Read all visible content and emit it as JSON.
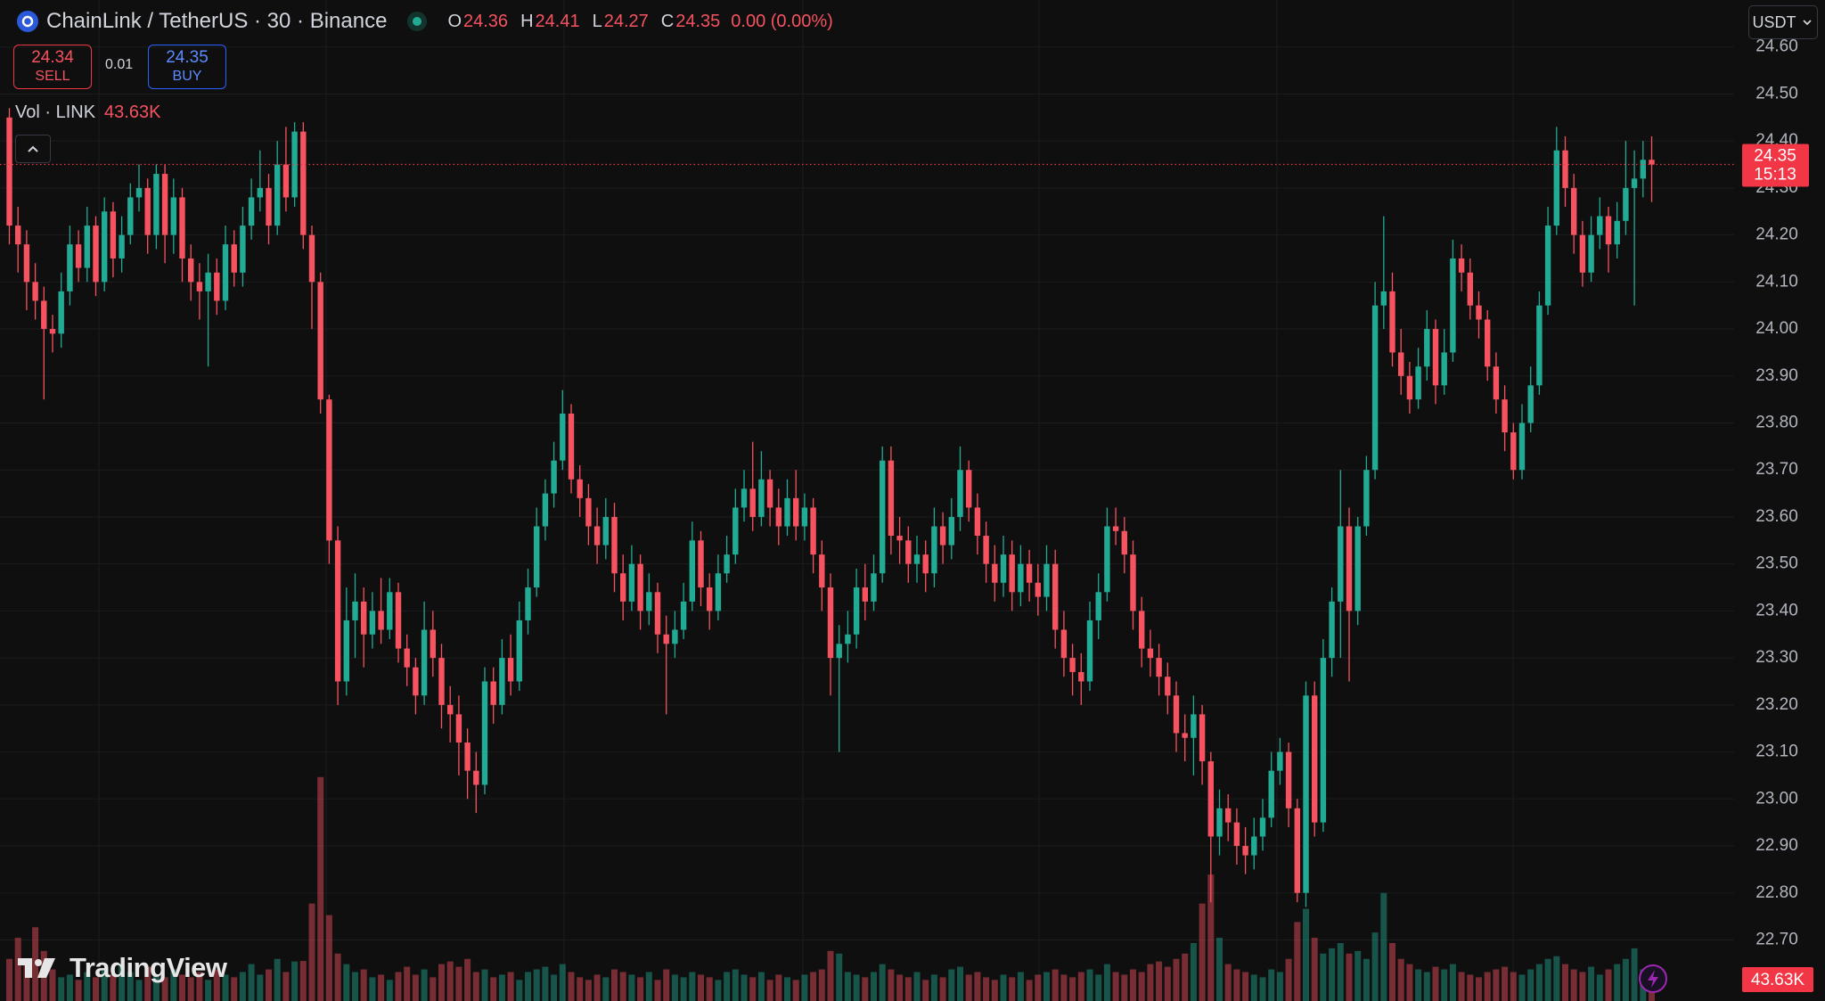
{
  "header": {
    "title": "ChainLink / TetherUS · 30 · Binance",
    "ohlc_labels": [
      "O",
      "H",
      "L",
      "C"
    ],
    "change": "0.00 (0.00%)",
    "currency": "USDT",
    "logo_text": "TradingView"
  },
  "trade": {
    "sell_price": "24.34",
    "sell_label": "SELL",
    "spread": "0.01",
    "buy_price": "24.35",
    "buy_label": "BUY"
  },
  "chart_data": {
    "type": "candlestick",
    "up_color": "#22ab94",
    "down_color": "#f7525f",
    "ylim": [
      22.57,
      24.7
    ],
    "yticks": [
      {
        "value": 22.7,
        "label": "22.70"
      },
      {
        "value": 22.8,
        "label": "22.80"
      },
      {
        "value": 22.9,
        "label": "22.90"
      },
      {
        "value": 23.0,
        "label": "23.00"
      },
      {
        "value": 23.1,
        "label": "23.10"
      },
      {
        "value": 23.2,
        "label": "23.20"
      },
      {
        "value": 23.3,
        "label": "23.30"
      },
      {
        "value": 23.4,
        "label": "23.40"
      },
      {
        "value": 23.5,
        "label": "23.50"
      },
      {
        "value": 23.6,
        "label": "23.60"
      },
      {
        "value": 23.7,
        "label": "23.70"
      },
      {
        "value": 23.8,
        "label": "23.80"
      },
      {
        "value": 23.9,
        "label": "23.90"
      },
      {
        "value": 24.0,
        "label": "24.00"
      },
      {
        "value": 24.1,
        "label": "24.10"
      },
      {
        "value": 24.2,
        "label": "24.20"
      },
      {
        "value": 24.3,
        "label": "24.30"
      },
      {
        "value": 24.4,
        "label": "24.40"
      },
      {
        "value": 24.5,
        "label": "24.50"
      },
      {
        "value": 24.6,
        "label": "24.60"
      }
    ],
    "grid": true,
    "y2lim": [
      0,
      1900
    ],
    "volume_label": "Vol · LINK",
    "volume_value_label": "43.63K",
    "countdown": "15:13",
    "open": [
      24.45,
      24.22,
      24.18,
      24.1,
      24.06,
      24.0,
      23.99,
      24.08,
      24.18,
      24.13,
      24.22,
      24.1,
      24.25,
      24.15,
      24.2,
      24.28,
      24.3,
      24.2,
      24.33,
      24.2,
      24.28,
      24.15,
      24.1,
      24.08,
      24.12,
      24.06,
      24.18,
      24.12,
      24.22,
      24.28,
      24.3,
      24.22,
      24.35,
      24.28,
      24.42,
      24.2,
      24.1,
      23.85,
      23.55,
      23.25,
      23.38,
      23.42,
      23.35,
      23.4,
      23.36,
      23.44,
      23.32,
      23.28,
      23.22,
      23.36,
      23.3,
      23.2,
      23.18,
      23.12,
      23.06,
      23.03,
      23.25,
      23.2,
      23.3,
      23.25,
      23.38,
      23.45,
      23.58,
      23.65,
      23.72,
      23.82,
      23.68,
      23.64,
      23.58,
      23.54,
      23.6,
      23.48,
      23.42,
      23.5,
      23.4,
      23.44,
      23.35,
      23.33,
      23.36,
      23.42,
      23.55,
      23.45,
      23.4,
      23.48,
      23.52,
      23.62,
      23.66,
      23.6,
      23.68,
      23.62,
      23.58,
      23.64,
      23.58,
      23.62,
      23.52,
      23.45,
      23.3,
      23.33,
      23.35,
      23.45,
      23.42,
      23.48,
      23.72,
      23.56,
      23.55,
      23.5,
      23.52,
      23.48,
      23.58,
      23.54,
      23.6,
      23.7,
      23.62,
      23.56,
      23.5,
      23.46,
      23.52,
      23.44,
      23.5,
      23.46,
      23.43,
      23.5,
      23.36,
      23.3,
      23.27,
      23.25,
      23.38,
      23.44,
      23.58,
      23.57,
      23.52,
      23.4,
      23.32,
      23.3,
      23.26,
      23.22,
      23.14,
      23.13,
      23.18,
      23.08,
      22.92,
      22.98,
      22.95,
      22.9,
      22.88,
      22.92,
      22.96,
      23.06,
      23.1,
      22.98,
      22.8,
      23.22,
      22.95,
      23.3,
      23.42,
      23.58,
      23.4,
      23.58,
      23.7,
      24.05,
      24.08,
      23.95,
      23.9,
      23.85,
      23.92,
      24.0,
      23.88,
      23.95,
      24.15,
      24.12,
      24.05,
      24.02,
      23.92,
      23.85,
      23.78,
      23.7,
      23.8,
      23.88,
      24.05,
      24.22,
      24.38,
      24.3,
      24.2,
      24.12,
      24.2,
      24.24,
      24.18,
      24.23,
      24.3,
      24.32,
      24.36
    ],
    "high": [
      24.47,
      24.26,
      24.21,
      24.14,
      24.09,
      24.03,
      24.12,
      24.22,
      24.21,
      24.26,
      24.24,
      24.28,
      24.27,
      24.24,
      24.31,
      24.35,
      24.32,
      24.35,
      24.35,
      24.32,
      24.3,
      24.18,
      24.14,
      24.16,
      24.15,
      24.22,
      24.21,
      24.26,
      24.32,
      24.38,
      24.33,
      24.4,
      24.43,
      24.44,
      24.44,
      24.22,
      24.12,
      23.86,
      23.58,
      23.45,
      23.48,
      23.45,
      23.44,
      23.47,
      23.47,
      23.46,
      23.35,
      23.3,
      23.42,
      23.4,
      23.33,
      23.24,
      23.22,
      23.15,
      23.1,
      23.28,
      23.28,
      23.34,
      23.35,
      23.42,
      23.49,
      23.62,
      23.68,
      23.76,
      23.87,
      23.84,
      23.71,
      23.67,
      23.62,
      23.64,
      23.63,
      23.52,
      23.54,
      23.52,
      23.48,
      23.46,
      23.39,
      23.4,
      23.46,
      23.59,
      23.57,
      23.48,
      23.52,
      23.56,
      23.66,
      23.7,
      23.76,
      23.74,
      23.7,
      23.66,
      23.68,
      23.7,
      23.65,
      23.64,
      23.55,
      23.48,
      23.37,
      23.4,
      23.49,
      23.5,
      23.52,
      23.75,
      23.75,
      23.6,
      23.58,
      23.56,
      23.55,
      23.62,
      23.61,
      23.64,
      23.75,
      23.72,
      23.65,
      23.59,
      23.54,
      23.56,
      23.55,
      23.54,
      23.53,
      23.5,
      23.54,
      23.53,
      23.4,
      23.33,
      23.31,
      23.42,
      23.48,
      23.62,
      23.62,
      23.6,
      23.55,
      23.43,
      23.36,
      23.33,
      23.29,
      23.25,
      23.18,
      23.22,
      23.2,
      23.1,
      23.02,
      23.01,
      22.98,
      22.94,
      22.96,
      23.0,
      23.1,
      23.13,
      23.12,
      23.0,
      23.25,
      23.25,
      23.34,
      23.45,
      23.7,
      23.62,
      23.6,
      23.73,
      24.1,
      24.24,
      24.12,
      24.0,
      23.93,
      23.96,
      24.04,
      24.02,
      24.0,
      24.19,
      24.18,
      24.15,
      24.08,
      24.04,
      23.95,
      23.88,
      23.8,
      23.84,
      23.92,
      24.08,
      24.26,
      24.43,
      24.41,
      24.33,
      24.23,
      24.24,
      24.28,
      24.26,
      24.27,
      24.4,
      24.38,
      24.4,
      24.41
    ],
    "low": [
      24.18,
      24.12,
      24.04,
      24.02,
      23.85,
      23.95,
      23.96,
      24.05,
      24.1,
      24.1,
      24.07,
      24.08,
      24.11,
      24.12,
      24.18,
      24.25,
      24.16,
      24.17,
      24.14,
      24.16,
      24.1,
      24.06,
      24.02,
      23.92,
      24.03,
      24.04,
      24.09,
      24.09,
      24.19,
      24.25,
      24.18,
      24.2,
      24.25,
      24.26,
      24.17,
      24.0,
      23.82,
      23.5,
      23.2,
      23.22,
      23.3,
      23.28,
      23.32,
      23.33,
      23.34,
      23.29,
      23.24,
      23.18,
      23.2,
      23.26,
      23.15,
      23.12,
      23.05,
      23.0,
      22.97,
      23.01,
      23.16,
      23.18,
      23.22,
      23.23,
      23.35,
      23.43,
      23.55,
      23.62,
      23.7,
      23.65,
      23.6,
      23.54,
      23.5,
      23.51,
      23.44,
      23.38,
      23.4,
      23.36,
      23.37,
      23.31,
      23.18,
      23.3,
      23.34,
      23.4,
      23.41,
      23.36,
      23.38,
      23.46,
      23.5,
      23.59,
      23.57,
      23.58,
      23.58,
      23.54,
      23.56,
      23.55,
      23.55,
      23.48,
      23.4,
      23.22,
      23.1,
      23.29,
      23.32,
      23.38,
      23.4,
      23.46,
      23.52,
      23.5,
      23.46,
      23.46,
      23.44,
      23.45,
      23.5,
      23.51,
      23.57,
      23.59,
      23.52,
      23.46,
      23.42,
      23.43,
      23.4,
      23.41,
      23.42,
      23.39,
      23.4,
      23.32,
      23.26,
      23.22,
      23.2,
      23.23,
      23.34,
      23.42,
      23.54,
      23.48,
      23.36,
      23.28,
      23.26,
      23.22,
      23.18,
      23.1,
      23.08,
      23.05,
      23.03,
      22.78,
      22.88,
      22.91,
      22.86,
      22.84,
      22.85,
      22.89,
      22.94,
      23.03,
      22.94,
      22.78,
      22.77,
      22.92,
      22.93,
      23.26,
      23.3,
      23.25,
      23.37,
      23.56,
      23.68,
      24.0,
      23.92,
      23.86,
      23.82,
      23.83,
      23.89,
      23.84,
      23.86,
      23.93,
      24.08,
      24.02,
      23.98,
      23.89,
      23.82,
      23.74,
      23.68,
      23.68,
      23.78,
      23.86,
      24.03,
      24.2,
      24.26,
      24.16,
      24.09,
      24.1,
      24.17,
      24.12,
      24.15,
      24.2,
      24.05,
      24.28,
      24.27
    ],
    "close": [
      24.22,
      24.18,
      24.1,
      24.06,
      24.0,
      23.99,
      24.08,
      24.18,
      24.13,
      24.22,
      24.1,
      24.25,
      24.15,
      24.2,
      24.28,
      24.3,
      24.2,
      24.33,
      24.2,
      24.28,
      24.15,
      24.1,
      24.08,
      24.12,
      24.06,
      24.18,
      24.12,
      24.22,
      24.28,
      24.3,
      24.22,
      24.35,
      24.28,
      24.42,
      24.2,
      24.1,
      23.85,
      23.55,
      23.25,
      23.38,
      23.42,
      23.35,
      23.4,
      23.36,
      23.44,
      23.32,
      23.28,
      23.22,
      23.36,
      23.3,
      23.2,
      23.18,
      23.12,
      23.06,
      23.03,
      23.25,
      23.2,
      23.3,
      23.25,
      23.38,
      23.45,
      23.58,
      23.65,
      23.72,
      23.82,
      23.68,
      23.64,
      23.58,
      23.54,
      23.6,
      23.48,
      23.42,
      23.5,
      23.4,
      23.44,
      23.35,
      23.33,
      23.36,
      23.42,
      23.55,
      23.45,
      23.4,
      23.48,
      23.52,
      23.62,
      23.66,
      23.6,
      23.68,
      23.62,
      23.58,
      23.64,
      23.58,
      23.62,
      23.52,
      23.45,
      23.3,
      23.33,
      23.35,
      23.45,
      23.42,
      23.48,
      23.72,
      23.56,
      23.55,
      23.5,
      23.52,
      23.48,
      23.58,
      23.54,
      23.6,
      23.7,
      23.62,
      23.56,
      23.5,
      23.46,
      23.52,
      23.44,
      23.5,
      23.46,
      23.43,
      23.5,
      23.36,
      23.3,
      23.27,
      23.25,
      23.38,
      23.44,
      23.58,
      23.57,
      23.52,
      23.4,
      23.32,
      23.3,
      23.26,
      23.22,
      23.14,
      23.13,
      23.18,
      23.08,
      22.92,
      22.98,
      22.95,
      22.9,
      22.88,
      22.92,
      22.96,
      23.06,
      23.1,
      22.98,
      22.8,
      23.22,
      22.95,
      23.3,
      23.42,
      23.58,
      23.4,
      23.58,
      23.7,
      24.05,
      24.08,
      23.95,
      23.9,
      23.85,
      23.92,
      24.0,
      23.88,
      23.95,
      24.15,
      24.12,
      24.05,
      24.02,
      23.92,
      23.85,
      23.78,
      23.7,
      23.8,
      23.88,
      24.05,
      24.22,
      24.38,
      24.3,
      24.2,
      24.12,
      24.2,
      24.24,
      24.18,
      24.23,
      24.3,
      24.32,
      24.36,
      24.35
    ],
    "volume": [
      80,
      120,
      70,
      140,
      95,
      60,
      45,
      50,
      40,
      55,
      45,
      60,
      50,
      70,
      55,
      40,
      65,
      50,
      45,
      60,
      50,
      45,
      55,
      40,
      60,
      50,
      45,
      55,
      70,
      50,
      60,
      80,
      55,
      75,
      76,
      185,
      425,
      163,
      90,
      70,
      55,
      60,
      45,
      50,
      40,
      55,
      65,
      50,
      60,
      45,
      70,
      75,
      65,
      80,
      55,
      60,
      45,
      50,
      55,
      40,
      55,
      60,
      65,
      50,
      70,
      55,
      45,
      40,
      50,
      45,
      60,
      55,
      50,
      45,
      55,
      40,
      60,
      50,
      45,
      55,
      50,
      45,
      40,
      55,
      60,
      50,
      45,
      55,
      40,
      50,
      45,
      40,
      50,
      55,
      60,
      95,
      90,
      55,
      50,
      45,
      55,
      70,
      60,
      50,
      45,
      55,
      40,
      50,
      45,
      60,
      65,
      50,
      55,
      45,
      40,
      50,
      45,
      55,
      40,
      50,
      55,
      60,
      50,
      45,
      55,
      60,
      50,
      70,
      55,
      50,
      60,
      55,
      70,
      75,
      65,
      80,
      90,
      110,
      185,
      240,
      120,
      70,
      60,
      55,
      50,
      45,
      60,
      55,
      80,
      150,
      175,
      120,
      90,
      100,
      110,
      90,
      95,
      80,
      130,
      205,
      110,
      80,
      70,
      60,
      55,
      65,
      60,
      70,
      55,
      50,
      45,
      55,
      60,
      65,
      55,
      50,
      60,
      70,
      80,
      85,
      70,
      60,
      55,
      65,
      50,
      60,
      70,
      80,
      100,
      60,
      43.63
    ]
  }
}
